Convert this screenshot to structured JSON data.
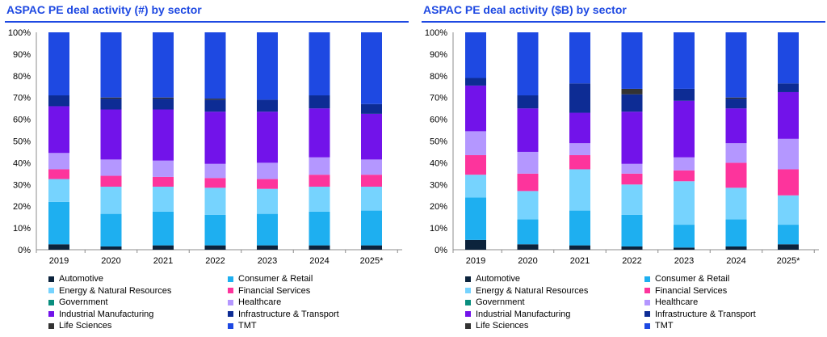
{
  "sector_colors": {
    "Automotive": "#0c233c",
    "Consumer & Retail": "#1eaff0",
    "Energy & Natural Resources": "#76d3fe",
    "Financial Services": "#fd349c",
    "Government": "#098e7e",
    "Healthcare": "#b497ff",
    "Industrial Manufacturing": "#7213ea",
    "Infrastructure & Transport": "#0d2c94",
    "Life Sciences": "#333333",
    "TMT": "#1e49e2"
  },
  "legend": {
    "items": [
      "Automotive",
      "Consumer & Retail",
      "Energy & Natural Resources",
      "Financial Services",
      "Government",
      "Healthcare",
      "Industrial Manufacturing",
      "Infrastructure & Transport",
      "Life Sciences",
      "TMT"
    ]
  },
  "chart_data": [
    {
      "type": "bar",
      "stacked": true,
      "title": "ASPAC PE deal activity (#) by sector",
      "xlabel": "",
      "ylabel": "",
      "ylim": [
        0,
        100
      ],
      "yticks": [
        "0%",
        "10%",
        "20%",
        "30%",
        "40%",
        "50%",
        "60%",
        "70%",
        "80%",
        "90%",
        "100%"
      ],
      "categories": [
        "2019",
        "2020",
        "2021",
        "2022",
        "2023",
        "2024",
        "2025*"
      ],
      "grid": false,
      "legend_position": "bottom",
      "series": [
        {
          "name": "Automotive",
          "values": [
            2.5,
            1.5,
            2,
            2,
            2,
            2,
            2
          ]
        },
        {
          "name": "Consumer & Retail",
          "values": [
            19.5,
            15,
            15.5,
            14,
            14.5,
            15.5,
            16
          ]
        },
        {
          "name": "Energy & Natural Resources",
          "values": [
            10.5,
            12.5,
            11.5,
            12.5,
            11.5,
            11.5,
            11
          ]
        },
        {
          "name": "Financial Services",
          "values": [
            4.5,
            5,
            4.5,
            4.5,
            4.5,
            5.5,
            5.5
          ]
        },
        {
          "name": "Government",
          "values": [
            0,
            0,
            0,
            0,
            0,
            0,
            0
          ]
        },
        {
          "name": "Healthcare",
          "values": [
            7.5,
            7.5,
            7.5,
            6.5,
            7.5,
            8,
            7
          ]
        },
        {
          "name": "Industrial Manufacturing",
          "values": [
            21.5,
            23,
            23.5,
            24,
            23.5,
            22.5,
            21
          ]
        },
        {
          "name": "Infrastructure & Transport",
          "values": [
            5,
            5,
            5,
            5.5,
            5.5,
            6,
            4.5
          ]
        },
        {
          "name": "Life Sciences",
          "values": [
            0,
            0.5,
            0.5,
            0.5,
            0,
            0,
            0
          ]
        },
        {
          "name": "TMT",
          "values": [
            29,
            30,
            30,
            30.5,
            31,
            29,
            33
          ]
        }
      ]
    },
    {
      "type": "bar",
      "stacked": true,
      "title": "ASPAC PE deal activity ($B) by sector",
      "xlabel": "",
      "ylabel": "",
      "ylim": [
        0,
        100
      ],
      "yticks": [
        "0%",
        "10%",
        "20%",
        "30%",
        "40%",
        "50%",
        "60%",
        "70%",
        "80%",
        "90%",
        "100%"
      ],
      "categories": [
        "2019",
        "2020",
        "2021",
        "2022",
        "2023",
        "2024",
        "2025*"
      ],
      "grid": false,
      "legend_position": "bottom",
      "series": [
        {
          "name": "Automotive",
          "values": [
            4.5,
            2.5,
            2,
            1.5,
            1,
            1.5,
            2.5
          ]
        },
        {
          "name": "Consumer & Retail",
          "values": [
            19.5,
            11.5,
            16,
            14.5,
            10.5,
            12.5,
            9
          ]
        },
        {
          "name": "Energy & Natural Resources",
          "values": [
            10.5,
            13,
            19,
            14,
            20,
            14.5,
            13.5
          ]
        },
        {
          "name": "Financial Services",
          "values": [
            9,
            8,
            6.5,
            5,
            5,
            11.5,
            12
          ]
        },
        {
          "name": "Government",
          "values": [
            0,
            0,
            0,
            0,
            0,
            0,
            0
          ]
        },
        {
          "name": "Healthcare",
          "values": [
            11,
            10,
            5.5,
            4.5,
            6,
            9,
            14
          ]
        },
        {
          "name": "Industrial Manufacturing",
          "values": [
            21,
            20,
            14,
            24,
            26,
            16,
            21.5
          ]
        },
        {
          "name": "Infrastructure & Transport",
          "values": [
            3.5,
            6,
            13.5,
            8,
            5.5,
            4.5,
            4
          ]
        },
        {
          "name": "Life Sciences",
          "values": [
            0,
            0,
            0,
            2.5,
            0,
            0.5,
            0
          ]
        },
        {
          "name": "TMT",
          "values": [
            21,
            29,
            23.5,
            26,
            26,
            30,
            23.5
          ]
        }
      ]
    }
  ]
}
